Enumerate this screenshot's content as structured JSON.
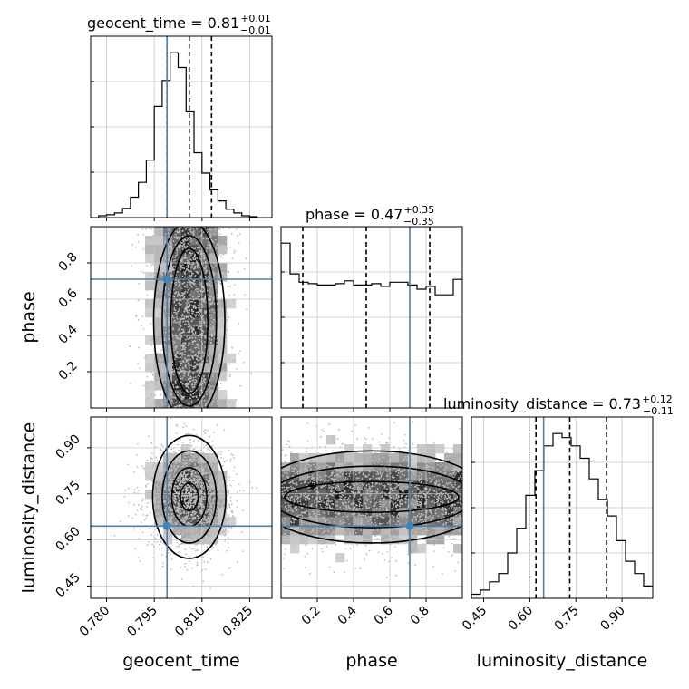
{
  "chart_data": {
    "type": "scatter",
    "subtype": "corner",
    "parameters": [
      "geocent_time",
      "phase",
      "luminosity_distance"
    ],
    "titles": [
      {
        "param": "geocent_time",
        "base": "geocent_time = 0.81",
        "sup": "+0.01",
        "sub": "−0.01"
      },
      {
        "param": "phase",
        "base": "phase = 0.47",
        "sup": "+0.35",
        "sub": "−0.35"
      },
      {
        "param": "luminosity_distance",
        "base": "luminosity_distance = 0.73",
        "sup": "+0.12",
        "sub": "−0.11"
      }
    ],
    "axis_labels": {
      "x": [
        "geocent_time",
        "phase",
        "luminosity_distance"
      ],
      "y": [
        "phase",
        "luminosity_distance"
      ]
    },
    "ranges": {
      "geocent_time": [
        0.775,
        0.832
      ],
      "phase": [
        0.0,
        1.0
      ],
      "luminosity_distance": [
        0.41,
        1.0
      ]
    },
    "ticks": {
      "geocent_time": [
        0.78,
        0.795,
        0.81,
        0.825
      ],
      "geocent_time_labels": [
        "0.780",
        "0.795",
        "0.810",
        "0.825"
      ],
      "phase": [
        0.2,
        0.4,
        0.6,
        0.8
      ],
      "phase_labels": [
        "0.2",
        "0.4",
        "0.6",
        "0.8"
      ],
      "luminosity_distance": [
        0.45,
        0.6,
        0.75,
        0.9
      ],
      "luminosity_distance_labels": [
        "0.45",
        "0.60",
        "0.75",
        "0.90"
      ]
    },
    "truths": {
      "geocent_time": 0.799,
      "phase": 0.71,
      "luminosity_distance": 0.645
    },
    "quantiles": {
      "geocent_time": [
        0.799,
        0.806,
        0.813
      ],
      "phase": [
        0.12,
        0.47,
        0.82
      ],
      "luminosity_distance": [
        0.62,
        0.73,
        0.85
      ]
    },
    "histograms": {
      "geocent_time": {
        "edges_start": 0.7775,
        "bin_width": 0.0025,
        "counts": [
          2,
          3,
          5,
          10,
          22,
          38,
          62,
          120,
          148,
          178,
          162,
          115,
          70,
          48,
          30,
          18,
          9,
          5,
          2,
          1
        ]
      },
      "phase": {
        "edges_start": 0.0,
        "bin_width": 0.05,
        "counts": [
          118,
          96,
          90,
          89,
          88,
          88,
          89,
          91,
          88,
          88,
          89,
          87,
          90,
          90,
          88,
          85,
          87,
          81,
          81,
          92
        ]
      },
      "luminosity_distance": {
        "edges_start": 0.41,
        "bin_width": 0.0295,
        "counts": [
          2,
          4,
          8,
          12,
          22,
          34,
          50,
          62,
          74,
          80,
          78,
          74,
          68,
          58,
          48,
          40,
          28,
          18,
          12,
          6
        ]
      }
    },
    "grid": true
  }
}
